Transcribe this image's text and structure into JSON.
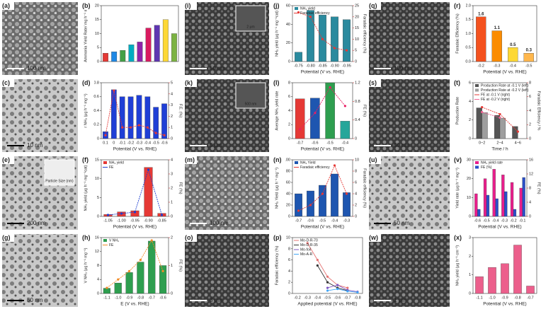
{
  "panels": [
    {
      "label": "(a)",
      "scale_bar": "100 nm"
    },
    {
      "label": "(b)",
      "chart": {
        "type": "bar",
        "y_label": "Ammonia Yield Rate/ mg h⁻¹ m⁻²",
        "categories": [
          null,
          null,
          null,
          null,
          null,
          null,
          null,
          null,
          null
        ],
        "series": [
          {
            "colors": [
              "#e53935",
              "#1e88e5",
              "#43a047",
              "#00acc1",
              "#8e24aa",
              "#d81b60",
              "#5e35b1",
              "#fdd835",
              "#7cb342"
            ],
            "color": "#e53935",
            "values": [
              3,
              3.5,
              4,
              6,
              7,
              12,
              13,
              15,
              10
            ]
          }
        ],
        "ylim": [
          0,
          20
        ],
        "yticks": [
          0,
          5,
          10,
          15,
          20
        ]
      }
    },
    {
      "label": "(c)",
      "scale_bar": "10 nm"
    },
    {
      "label": "(d)",
      "chart": {
        "type": "bar",
        "x_label": "Potential (V vs. RHE)",
        "y_label": "r NH₃ (μg h⁻¹ mg⁻¹)",
        "y2_label": "F.E. (%)",
        "categories": [
          "0.1",
          "0",
          "-0.1",
          "-0.2",
          "-0.3",
          "-0.4",
          "-0.5",
          "-0.6"
        ],
        "series": [
          {
            "color": "#1f3fd6",
            "values": [
              0.1,
              0.7,
              0.6,
              0.6,
              0.62,
              0.6,
              0.45,
              0.5
            ]
          },
          {
            "type": "line",
            "axis": "y2",
            "color": "#e53935",
            "values": [
              0.3,
              4.3,
              1.0,
              1.0,
              1.2,
              1.0,
              0.5,
              0.3
            ]
          }
        ],
        "ylim": [
          0,
          0.8
        ],
        "yticks": [
          0,
          0.2,
          0.4,
          0.6,
          0.8
        ],
        "y2lim": [
          0,
          5
        ],
        "y2ticks": [
          0,
          1,
          2,
          3,
          4,
          5
        ]
      }
    },
    {
      "label": "(e)",
      "scale_bar": "200 nm",
      "inset_scale_bar": "Particle Size (nm)"
    },
    {
      "label": "(f)",
      "chart": {
        "type": "bar",
        "x_label": "Potential (V vs. RHE)",
        "y_label": "NH₃ yield (μg h⁻¹ mg⁻¹cat)",
        "y2_label": "FE (%)",
        "categories": [
          "-1.05",
          "-1.00",
          "-0.95",
          "-0.90",
          "-0.85"
        ],
        "series": [
          {
            "name": "NH₃ yield",
            "color": "#e53935",
            "values": [
              0.5,
              1.2,
              1.5,
              13,
              0.8
            ]
          },
          {
            "name": "FE",
            "type": "line",
            "axis": "y2",
            "color": "#1e3fd0",
            "values": [
              0.1,
              0.2,
              0.3,
              3.3,
              0.1
            ]
          }
        ],
        "ylim": [
          0,
          15
        ],
        "yticks": [
          0,
          5,
          10,
          15
        ],
        "y2lim": [
          0,
          4
        ],
        "y2ticks": [
          0,
          1,
          2,
          3,
          4
        ]
      }
    },
    {
      "label": "(g)",
      "scale_bar": "50 nm"
    },
    {
      "label": "(h)",
      "chart": {
        "type": "bar",
        "x_label": "E (V vs. RHE)",
        "y_label": "V NH₃ (μg h⁻¹ mg⁻¹)",
        "y2_label": "FE (%)",
        "categories": [
          "-1.1",
          "-1.0",
          "-0.9",
          "-0.8",
          "-0.7",
          "-0.6"
        ],
        "series": [
          {
            "name": "V NH₃",
            "color": "#2e9e4f",
            "values": [
              1.5,
              3,
              6,
              9,
              15,
              8
            ]
          },
          {
            "name": "FE",
            "type": "line",
            "axis": "y2",
            "color": "#f28c28",
            "values": [
              0.2,
              0.5,
              0.8,
              1.2,
              1.9,
              0.8
            ]
          }
        ],
        "ylim": [
          0,
          16
        ],
        "yticks": [
          0,
          4,
          8,
          12,
          16
        ],
        "y2lim": [
          0,
          2
        ],
        "y2ticks": [
          0,
          1,
          2
        ]
      }
    },
    {
      "label": "(i)",
      "scale_bar": "50 nm",
      "inset_scale_bar": "2 μm"
    },
    {
      "label": "(j)",
      "chart": {
        "type": "bar",
        "x_label": "Potential (V vs. RHE)",
        "y_label": "NH₃ yield (μg h⁻¹ mg⁻¹cat)",
        "y2_label": "Faradaic efficiency (%)",
        "categories": [
          "-0.75",
          "-0.80",
          "-0.85",
          "-0.90",
          "-0.95"
        ],
        "series": [
          {
            "name": "NH₃ yield",
            "color": "#2b8a9e",
            "values": [
              10,
              55,
              50,
              48,
              45
            ]
          },
          {
            "name": "Faradaic efficiency",
            "type": "line",
            "axis": "y2",
            "color": "#e53935",
            "values": [
              22,
              20,
              10,
              6,
              5
            ]
          }
        ],
        "ylim": [
          0,
          60
        ],
        "yticks": [
          0,
          20,
          40,
          60
        ],
        "y2lim": [
          0,
          25
        ],
        "y2ticks": [
          0,
          5,
          10,
          15,
          20,
          25
        ]
      }
    },
    {
      "label": "(k)",
      "scale_bar": "5 μm",
      "inset_scale_bar": "500 nm"
    },
    {
      "label": "(l)",
      "chart": {
        "type": "bar",
        "x_label": "Potential (V vs. RHE)",
        "y_label": "Average NH₃ yield rate",
        "y2_label": "FE (%)",
        "categories": [
          "-0.7",
          "-0.6",
          "-0.5",
          "-0.4"
        ],
        "series": [
          {
            "colors": [
              "#e53935",
              "#1e56b0",
              "#2e9e4f",
              "#26a69a"
            ],
            "color": "#e53935",
            "values": [
              5.7,
              5.8,
              8,
              2.5
            ]
          },
          {
            "type": "line",
            "axis": "y2",
            "color": "#e91e63",
            "values": [
              0.2,
              0.55,
              1.1,
              0.7
            ]
          }
        ],
        "ylim": [
          0,
          8
        ],
        "yticks": [
          0,
          2,
          4,
          6,
          8
        ],
        "y2lim": [
          0,
          1.2
        ],
        "y2ticks": [
          0,
          0.4,
          0.8,
          1.2
        ]
      }
    },
    {
      "label": "(m)",
      "scale_bar": "100 nm"
    },
    {
      "label": "(n)",
      "chart": {
        "type": "bar",
        "x_label": "Potential (V vs. RHE)",
        "y_label": "NH₃ Yield (μg h⁻¹ mg⁻¹)",
        "y2_label": "Faradaic efficiency (%)",
        "categories": [
          "-0.7",
          "-0.6",
          "-0.5",
          "-0.4",
          "-0.3"
        ],
        "series": [
          {
            "name": "NH₃ Yield",
            "color": "#1e56b0",
            "values": [
              40,
              45,
              55,
              75,
              42
            ]
          },
          {
            "name": "Faradaic efficiency",
            "type": "line",
            "axis": "y2",
            "color": "#e53935",
            "values": [
              1,
              2,
              4,
              9,
              4
            ]
          }
        ],
        "ylim": [
          0,
          100
        ],
        "yticks": [
          0,
          20,
          40,
          60,
          80,
          100
        ],
        "y2lim": [
          0,
          10
        ],
        "y2ticks": [
          0,
          2,
          4,
          6,
          8,
          10
        ]
      }
    },
    {
      "label": "(o)",
      "scale_bar": "3 μm"
    },
    {
      "label": "(p)",
      "chart": {
        "type": "line",
        "x_label": "Applied potential (V vs. RHE)",
        "y_label": "Faradaic efficiency (%)",
        "categories": [
          "-0.2",
          "-0.3",
          "-0.4",
          "-0.5",
          "-0.6",
          "-0.7",
          "-0.8"
        ],
        "series": [
          {
            "name": "Mo-D-R-70",
            "type": "line",
            "color": "#e57373",
            "values": [
              null,
              9,
              6,
              3,
              1.5,
              1,
              null
            ]
          },
          {
            "name": "Mo-D-R-35",
            "type": "line",
            "color": "#333333",
            "values": [
              null,
              null,
              5,
              2,
              1,
              0.5,
              null
            ]
          },
          {
            "name": "Mo-foil",
            "type": "line",
            "color": "#7e57c2",
            "values": [
              null,
              null,
              null,
              1,
              1.5,
              0.6,
              0.3
            ]
          },
          {
            "name": "Mo-A-R",
            "type": "line",
            "color": "#42a5f5",
            "values": [
              null,
              null,
              null,
              0.5,
              0.8,
              0.4,
              0.2
            ]
          }
        ],
        "ylim": [
          0,
          10
        ],
        "yticks": [
          0,
          2,
          4,
          6,
          8,
          10
        ]
      }
    },
    {
      "label": "(q)",
      "scale_bar": "100 nm"
    },
    {
      "label": "(r)",
      "chart": {
        "type": "bar",
        "data_labels": true,
        "x_label": "Potential (V vs. RHE)",
        "y_label": "Faradaic Efficiency (%)",
        "categories": [
          "-0.2",
          "-0.3",
          "-0.4",
          "-0.5"
        ],
        "series": [
          {
            "colors": [
              "#f4511e",
              "#fb8c00",
              "#fdd835",
              "#ffb74d"
            ],
            "color": "#f4511e",
            "values": [
              1.6,
              1.1,
              0.5,
              0.3
            ]
          }
        ],
        "ylim": [
          0,
          2
        ],
        "yticks": [
          {
            "value": 0,
            "label": "0.0"
          },
          0.5,
          {
            "value": 1,
            "label": "1.0"
          },
          1.5,
          {
            "value": 2,
            "label": "2.0"
          }
        ]
      }
    },
    {
      "label": "(s)",
      "scale_bar": "50 nm"
    },
    {
      "label": "(t)",
      "chart": {
        "type": "bar",
        "x_label": "Time / h",
        "y_label": "Production Rate",
        "y2_label": "Faradaic Efficiency / %",
        "categories": [
          "0~2",
          "2~4",
          "4~6"
        ],
        "series": [
          {
            "name": "Production Rate at -0.1 V (left)",
            "color": "#555555",
            "values": [
              3.3,
              2.5,
              1.3
            ]
          },
          {
            "name": "Production Rate at -0.2 V (left)",
            "color": "#9e9e9e",
            "values": [
              2.8,
              2.2,
              null
            ]
          },
          {
            "name": "FE at -0.1 V (right)",
            "type": "line",
            "axis": "y2",
            "color": "#e53935",
            "values": [
              4.5,
              3.5,
              1
            ]
          },
          {
            "name": "FE at -0.2 V (right)",
            "type": "line",
            "axis": "y2",
            "color": "#f06292",
            "values": [
              3.8,
              3,
              null
            ]
          }
        ],
        "ylim": [
          0,
          6
        ],
        "yticks": [
          0,
          2,
          4,
          6
        ],
        "y2lim": [
          0,
          8
        ],
        "y2ticks": [
          0,
          2,
          4,
          6,
          8
        ]
      }
    },
    {
      "label": "(u)",
      "scale_bar": "50 nm"
    },
    {
      "label": "(v)",
      "chart": {
        "type": "bar",
        "x_label": "Potential (V vs. RHE)",
        "y_label": "Yield rate (μg h⁻¹ mg⁻¹)",
        "y2_label": "FE (%)",
        "categories": [
          "-0.6",
          "-0.5",
          "-0.4",
          "-0.3",
          "-0.2",
          "-0.1"
        ],
        "series": [
          {
            "name": "NH₃ yield rate",
            "color": "#e91e8c",
            "values": [
              12,
              20,
              25,
              22,
              18,
              15
            ]
          },
          {
            "name": "FE (%)",
            "axis": "y2",
            "color": "#2b4fc8",
            "values": [
              2,
              6,
              5,
              7,
              2,
              11
            ]
          }
        ],
        "ylim": [
          0,
          30
        ],
        "yticks": [
          0,
          10,
          20,
          30
        ],
        "y2lim": [
          0,
          16
        ],
        "y2ticks": [
          0,
          4,
          8,
          12,
          16
        ]
      }
    },
    {
      "label": "(w)",
      "scale_bar": "1 μm"
    },
    {
      "label": "(x)",
      "chart": {
        "type": "bar",
        "x_label": "Potential (V vs. RHE)",
        "y_label": "NH₃ yield (μg h⁻¹ cm⁻²)",
        "categories": [
          "-1.1",
          "-1.0",
          "-0.9",
          "-0.8",
          "-0.7"
        ],
        "series": [
          {
            "color": "#ec5f8c",
            "values": [
              0.9,
              1.4,
              1.6,
              2.6,
              0.4
            ]
          }
        ],
        "ylim": [
          0,
          3
        ],
        "yticks": [
          0,
          1,
          2,
          3
        ]
      }
    }
  ]
}
